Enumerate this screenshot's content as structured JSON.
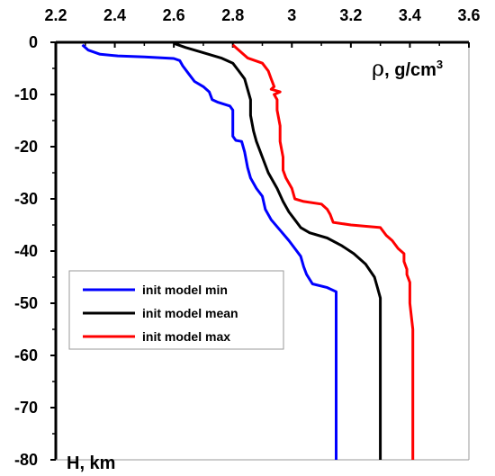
{
  "chart_data": {
    "type": "line",
    "x_axis": {
      "label": "ρ, g/cm³",
      "label_parts": [
        "ρ",
        ", g/cm",
        "3"
      ],
      "range": [
        2.2,
        3.6
      ],
      "ticks": [
        "2.2",
        "2.4",
        "2.6",
        "2.8",
        "3",
        "3.2",
        "3.4",
        "3.6"
      ],
      "position": "top"
    },
    "y_axis": {
      "label": "H, km",
      "range": [
        -80,
        0
      ],
      "ticks": [
        "0",
        "-10",
        "-20",
        "-30",
        "-40",
        "-50",
        "-60",
        "-70",
        "-80"
      ]
    },
    "grid": false,
    "legend": {
      "position": "center-left"
    },
    "series": [
      {
        "name": "init model min",
        "color": "#0000ff",
        "points": [
          [
            2.29,
            -0.5
          ],
          [
            2.31,
            -1.5
          ],
          [
            2.35,
            -2.3
          ],
          [
            2.41,
            -2.6
          ],
          [
            2.5,
            -2.8
          ],
          [
            2.6,
            -3.1
          ],
          [
            2.62,
            -3.5
          ],
          [
            2.63,
            -4.5
          ],
          [
            2.65,
            -6.0
          ],
          [
            2.67,
            -7.5
          ],
          [
            2.7,
            -8.5
          ],
          [
            2.72,
            -9.5
          ],
          [
            2.73,
            -11.0
          ],
          [
            2.75,
            -11.5
          ],
          [
            2.79,
            -12.2
          ],
          [
            2.8,
            -13.0
          ],
          [
            2.8,
            -18.0
          ],
          [
            2.81,
            -18.8
          ],
          [
            2.83,
            -19.0
          ],
          [
            2.84,
            -21.0
          ],
          [
            2.85,
            -24.0
          ],
          [
            2.86,
            -26.0
          ],
          [
            2.88,
            -28.0
          ],
          [
            2.9,
            -29.5
          ],
          [
            2.91,
            -32.0
          ],
          [
            2.93,
            -34.0
          ],
          [
            2.96,
            -36.0
          ],
          [
            2.99,
            -38.0
          ],
          [
            3.01,
            -39.5
          ],
          [
            3.03,
            -41.0
          ],
          [
            3.04,
            -43.0
          ],
          [
            3.05,
            -44.5
          ],
          [
            3.07,
            -46.3
          ],
          [
            3.12,
            -47.0
          ],
          [
            3.15,
            -47.8
          ],
          [
            3.15,
            -48.5
          ],
          [
            3.15,
            -80.0
          ]
        ]
      },
      {
        "name": "init model mean",
        "color": "#000000",
        "points": [
          [
            2.6,
            -0.2
          ],
          [
            2.64,
            -1.0
          ],
          [
            2.7,
            -2.0
          ],
          [
            2.76,
            -3.0
          ],
          [
            2.8,
            -4.0
          ],
          [
            2.82,
            -5.5
          ],
          [
            2.84,
            -7.0
          ],
          [
            2.85,
            -9.0
          ],
          [
            2.86,
            -11.0
          ],
          [
            2.86,
            -14.0
          ],
          [
            2.87,
            -17.0
          ],
          [
            2.88,
            -19.0
          ],
          [
            2.9,
            -22.0
          ],
          [
            2.92,
            -25.0
          ],
          [
            2.95,
            -28.0
          ],
          [
            2.97,
            -30.5
          ],
          [
            2.99,
            -32.5
          ],
          [
            3.01,
            -34.0
          ],
          [
            3.03,
            -35.5
          ],
          [
            3.06,
            -36.5
          ],
          [
            3.12,
            -37.5
          ],
          [
            3.17,
            -39.0
          ],
          [
            3.21,
            -40.5
          ],
          [
            3.25,
            -42.5
          ],
          [
            3.28,
            -45.0
          ],
          [
            3.29,
            -47.0
          ],
          [
            3.3,
            -49.0
          ],
          [
            3.3,
            -80.0
          ]
        ]
      },
      {
        "name": "init model max",
        "color": "#ff0000",
        "points": [
          [
            2.8,
            -0.5
          ],
          [
            2.82,
            -1.5
          ],
          [
            2.85,
            -3.0
          ],
          [
            2.9,
            -4.0
          ],
          [
            2.92,
            -5.5
          ],
          [
            2.93,
            -7.0
          ],
          [
            2.94,
            -8.5
          ],
          [
            2.93,
            -9.0
          ],
          [
            2.96,
            -9.5
          ],
          [
            2.94,
            -10.0
          ],
          [
            2.95,
            -11.0
          ],
          [
            2.95,
            -13.0
          ],
          [
            2.96,
            -16.0
          ],
          [
            2.96,
            -19.0
          ],
          [
            2.97,
            -22.0
          ],
          [
            2.97,
            -24.5
          ],
          [
            2.98,
            -26.0
          ],
          [
            3.0,
            -28.0
          ],
          [
            3.01,
            -30.0
          ],
          [
            3.04,
            -30.5
          ],
          [
            3.1,
            -31.0
          ],
          [
            3.12,
            -32.0
          ],
          [
            3.13,
            -33.0
          ],
          [
            3.14,
            -34.5
          ],
          [
            3.2,
            -35.0
          ],
          [
            3.3,
            -35.5
          ],
          [
            3.32,
            -37.0
          ],
          [
            3.34,
            -38.0
          ],
          [
            3.36,
            -39.5
          ],
          [
            3.38,
            -40.5
          ],
          [
            3.38,
            -42.0
          ],
          [
            3.39,
            -43.5
          ],
          [
            3.39,
            -44.5
          ],
          [
            3.4,
            -46.0
          ],
          [
            3.4,
            -50.0
          ],
          [
            3.41,
            -55.0
          ],
          [
            3.41,
            -80.0
          ]
        ]
      }
    ]
  }
}
